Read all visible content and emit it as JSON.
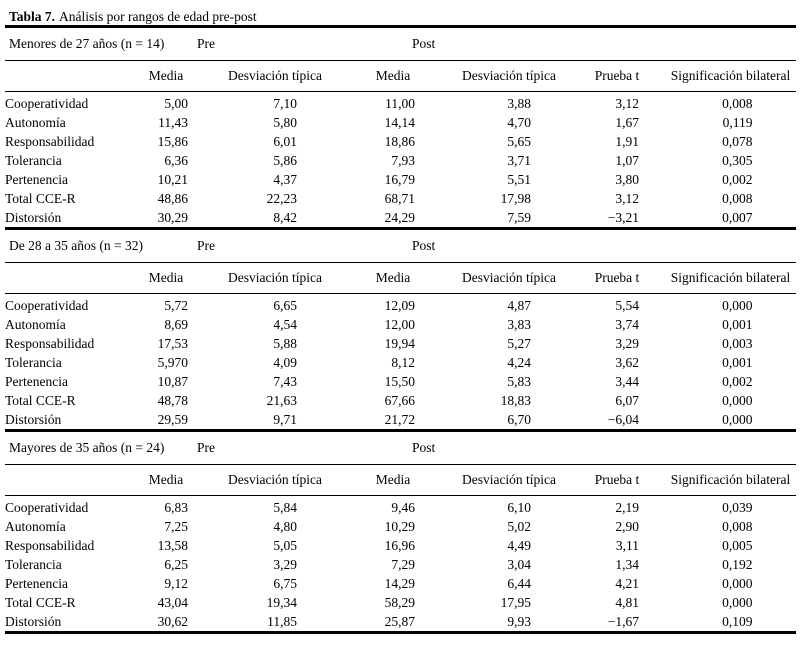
{
  "title": {
    "label": "Tabla 7.",
    "text": "Análisis por rangos de edad pre-post"
  },
  "labels": {
    "pre": "Pre",
    "post": "Post"
  },
  "columns": [
    "Media",
    "Desviación típica",
    "Media",
    "Desviación típica",
    "Prueba t",
    "Significación bilateral"
  ],
  "sections": [
    {
      "group": "Menores de 27 años (n = 14)",
      "rows": [
        [
          "Cooperatividad",
          "5,00",
          "7,10",
          "11,00",
          "3,88",
          "3,12",
          "0,008"
        ],
        [
          "Autonomía",
          "11,43",
          "5,80",
          "14,14",
          "4,70",
          "1,67",
          "0,119"
        ],
        [
          "Responsabilidad",
          "15,86",
          "6,01",
          "18,86",
          "5,65",
          "1,91",
          "0,078"
        ],
        [
          "Tolerancia",
          "6,36",
          "5,86",
          "7,93",
          "3,71",
          "1,07",
          "0,305"
        ],
        [
          "Pertenencia",
          "10,21",
          "4,37",
          "16,79",
          "5,51",
          "3,80",
          "0,002"
        ],
        [
          "Total CCE-R",
          "48,86",
          "22,23",
          "68,71",
          "17,98",
          "3,12",
          "0,008"
        ],
        [
          "Distorsión",
          "30,29",
          "8,42",
          "24,29",
          "7,59",
          "−3,21",
          "0,007"
        ]
      ]
    },
    {
      "group": "De 28 a 35 años (n = 32)",
      "rows": [
        [
          "Cooperatividad",
          "5,72",
          "6,65",
          "12,09",
          "4,87",
          "5,54",
          "0,000"
        ],
        [
          "Autonomía",
          "8,69",
          "4,54",
          "12,00",
          "3,83",
          "3,74",
          "0,001"
        ],
        [
          "Responsabilidad",
          "17,53",
          "5,88",
          "19,94",
          "5,27",
          "3,29",
          "0,003"
        ],
        [
          "Tolerancia",
          "5,970",
          "4,09",
          "8,12",
          "4,24",
          "3,62",
          "0,001"
        ],
        [
          "Pertenencia",
          "10,87",
          "7,43",
          "15,50",
          "5,83",
          "3,44",
          "0,002"
        ],
        [
          "Total CCE-R",
          "48,78",
          "21,63",
          "67,66",
          "18,83",
          "6,07",
          "0,000"
        ],
        [
          "Distorsión",
          "29,59",
          "9,71",
          "21,72",
          "6,70",
          "−6,04",
          "0,000"
        ]
      ]
    },
    {
      "group": "Mayores de 35 años (n = 24)",
      "rows": [
        [
          "Cooperatividad",
          "6,83",
          "5,84",
          "9,46",
          "6,10",
          "2,19",
          "0,039"
        ],
        [
          "Autonomía",
          "7,25",
          "4,80",
          "10,29",
          "5,02",
          "2,90",
          "0,008"
        ],
        [
          "Responsabilidad",
          "13,58",
          "5,05",
          "16,96",
          "4,49",
          "3,11",
          "0,005"
        ],
        [
          "Tolerancia",
          "6,25",
          "3,29",
          "7,29",
          "3,04",
          "1,34",
          "0,192"
        ],
        [
          "Pertenencia",
          "9,12",
          "6,75",
          "14,29",
          "6,44",
          "4,21",
          "0,000"
        ],
        [
          "Total CCE-R",
          "43,04",
          "19,34",
          "58,29",
          "17,95",
          "4,81",
          "0,000"
        ],
        [
          "Distorsión",
          "30,62",
          "11,85",
          "25,87",
          "9,93",
          "−1,67",
          "0,109"
        ]
      ]
    }
  ]
}
